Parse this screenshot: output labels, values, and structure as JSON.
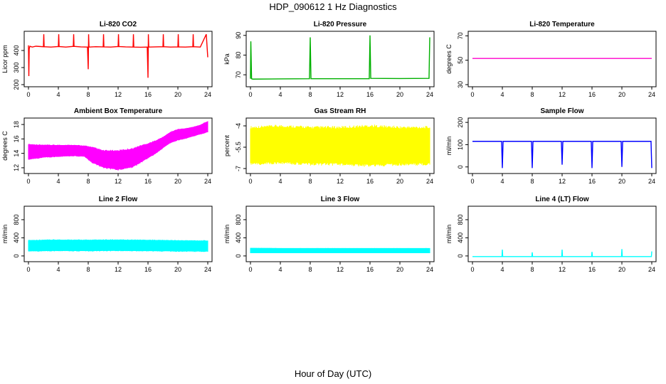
{
  "figure": {
    "title": "HDP_090612  1 Hz Diagnostics",
    "xlabel": "Hour of Day (UTC)"
  },
  "chart_data": [
    {
      "type": "line",
      "title": "Li-820 CO2",
      "ylabel": "Licor ppm",
      "color": "#ff0000",
      "xlim": [
        0,
        24
      ],
      "ylim": [
        200,
        500
      ],
      "yticks": [
        200,
        300,
        400
      ],
      "xticks": [
        0,
        4,
        8,
        12,
        16,
        20,
        24
      ],
      "series": [
        {
          "x": [
            0,
            0.05,
            0.1,
            0.2,
            0.5,
            1,
            2,
            2.05,
            2.1,
            3,
            4,
            4.05,
            4.1,
            5,
            6,
            6.05,
            6.1,
            7,
            7.9,
            8,
            8.05,
            8.1,
            9,
            10,
            10.05,
            10.1,
            11,
            12,
            12.05,
            12.1,
            13,
            14,
            14.05,
            14.1,
            15,
            15.9,
            16,
            16.05,
            16.1,
            17,
            18,
            18.05,
            18.1,
            19,
            20,
            20.05,
            20.1,
            21,
            22,
            22.05,
            22.1,
            23,
            23.8,
            24
          ],
          "y": [
            430,
            250,
            410,
            425,
            420,
            425,
            422,
            495,
            422,
            420,
            423,
            495,
            423,
            420,
            424,
            495,
            424,
            421,
            420,
            290,
            495,
            420,
            422,
            421,
            495,
            421,
            420,
            423,
            495,
            423,
            421,
            420,
            495,
            420,
            419,
            420,
            240,
            495,
            420,
            421,
            422,
            495,
            422,
            420,
            421,
            495,
            421,
            420,
            422,
            495,
            422,
            420,
            495,
            360
          ]
        }
      ]
    },
    {
      "type": "line",
      "title": "Li-820 Pressure",
      "ylabel": "kPa",
      "color": "#00b000",
      "xlim": [
        0,
        24
      ],
      "ylim": [
        65,
        91
      ],
      "yticks": [
        70,
        80,
        90
      ],
      "xticks": [
        0,
        4,
        8,
        12,
        16,
        20,
        24
      ],
      "series": [
        {
          "x": [
            0,
            0.05,
            0.15,
            0.3,
            4,
            7.9,
            8,
            8.1,
            12,
            15.9,
            16,
            16.1,
            20,
            23.9,
            24
          ],
          "y": [
            68,
            87,
            68,
            67.8,
            67.9,
            68,
            89,
            68,
            68,
            68,
            90,
            68.2,
            68.1,
            68.2,
            89
          ]
        }
      ]
    },
    {
      "type": "line",
      "title": "Li-820 Temperature",
      "ylabel": "degrees C",
      "color": "#ff00cc",
      "xlim": [
        0,
        24
      ],
      "ylim": [
        30,
        72
      ],
      "yticks": [
        30,
        50,
        70
      ],
      "xticks": [
        0,
        4,
        8,
        12,
        16,
        20,
        24
      ],
      "series": [
        {
          "x": [
            0,
            24
          ],
          "y": [
            51.5,
            51.5
          ]
        }
      ]
    },
    {
      "type": "area",
      "title": "Ambient Box Temperature",
      "ylabel": "degrees C",
      "color": "#ff00ff",
      "xlim": [
        0,
        24
      ],
      "ylim": [
        11.5,
        18.6
      ],
      "yticks": [
        12,
        14,
        16,
        18
      ],
      "xticks": [
        0,
        4,
        8,
        12,
        16,
        20,
        24
      ],
      "x": [
        0,
        2,
        4,
        6,
        7.5,
        8.5,
        10,
        12,
        14,
        15,
        16,
        17,
        18,
        19,
        20,
        21,
        22,
        23,
        24
      ],
      "upper": [
        15.2,
        15.1,
        15.1,
        15.1,
        15.0,
        14.8,
        14.3,
        14.3,
        14.6,
        15.0,
        15.3,
        15.7,
        16.2,
        16.9,
        17.3,
        17.4,
        17.6,
        17.9,
        18.4
      ],
      "lower": [
        13.2,
        13.5,
        13.6,
        13.7,
        13.6,
        12.8,
        12.1,
        11.8,
        12.2,
        12.8,
        13.4,
        14.0,
        14.8,
        15.5,
        15.9,
        16.1,
        16.4,
        16.7,
        17.0
      ]
    },
    {
      "type": "area",
      "title": "Gas Stream RH",
      "ylabel": "percent",
      "color": "#ffff00",
      "xlim": [
        0,
        24
      ],
      "ylim": [
        -7.2,
        -3.6
      ],
      "yticks": [
        -7.0,
        -5.5,
        -4.0
      ],
      "xticks": [
        0,
        4,
        8,
        12,
        16,
        20,
        24
      ],
      "x": [
        0,
        4,
        8,
        12,
        16,
        20,
        24
      ],
      "upper": [
        -4.2,
        -4.1,
        -4.2,
        -4.2,
        -4.1,
        -4.2,
        -4.2
      ],
      "lower": [
        -6.6,
        -6.5,
        -6.6,
        -6.6,
        -6.7,
        -6.6,
        -6.6
      ]
    },
    {
      "type": "line",
      "title": "Sample Flow",
      "ylabel": "ml/min",
      "color": "#0000ff",
      "xlim": [
        0,
        24
      ],
      "ylim": [
        -20,
        210
      ],
      "yticks": [
        0,
        100,
        200
      ],
      "xticks": [
        0,
        4,
        8,
        12,
        16,
        20,
        24
      ],
      "series": [
        {
          "x": [
            0,
            3.9,
            4,
            4.1,
            7.9,
            8,
            8.1,
            11.9,
            12,
            12.1,
            15.9,
            16,
            16.1,
            19.9,
            20,
            20.1,
            23.9,
            24
          ],
          "y": [
            115,
            115,
            -5,
            115,
            115,
            -5,
            115,
            115,
            10,
            115,
            115,
            -5,
            115,
            115,
            0,
            115,
            115,
            -5
          ]
        }
      ]
    },
    {
      "type": "area",
      "title": "Line 2 Flow",
      "ylabel": "ml/min",
      "color": "#00ffff",
      "xlim": [
        0,
        24
      ],
      "ylim": [
        -80,
        1050
      ],
      "yticks": [
        0,
        400,
        800
      ],
      "xticks": [
        0,
        4,
        8,
        12,
        16,
        20,
        24
      ],
      "x": [
        0,
        4,
        8,
        12,
        16,
        20,
        24
      ],
      "upper": [
        340,
        350,
        345,
        350,
        345,
        335,
        330
      ],
      "lower": [
        110,
        120,
        115,
        120,
        115,
        110,
        105
      ]
    },
    {
      "type": "area",
      "title": "Line 3 Flow",
      "ylabel": "ml/min",
      "color": "#00ffff",
      "xlim": [
        0,
        24
      ],
      "ylim": [
        -80,
        1050
      ],
      "yticks": [
        0,
        400,
        800
      ],
      "xticks": [
        0,
        4,
        8,
        12,
        16,
        20,
        24
      ],
      "x": [
        0,
        4,
        8,
        12,
        16,
        20,
        24
      ],
      "upper": [
        170,
        165,
        165,
        165,
        165,
        165,
        165
      ],
      "lower": [
        70,
        70,
        70,
        70,
        70,
        70,
        70
      ]
    },
    {
      "type": "line",
      "title": "Line 4 (LT) Flow",
      "ylabel": "ml/min",
      "color": "#00ffff",
      "xlim": [
        0,
        24
      ],
      "ylim": [
        -80,
        1050
      ],
      "yticks": [
        0,
        400,
        800
      ],
      "xticks": [
        0,
        4,
        8,
        12,
        16,
        20,
        24
      ],
      "series": [
        {
          "x": [
            0,
            3.95,
            4,
            4.05,
            7.95,
            8,
            8.05,
            11.95,
            12,
            12.05,
            15.95,
            16,
            16.05,
            19.95,
            20,
            20.05,
            23.95,
            24
          ],
          "y": [
            -15,
            -15,
            140,
            -15,
            -15,
            80,
            -15,
            -15,
            140,
            -15,
            -15,
            90,
            -15,
            -15,
            150,
            -15,
            -15,
            100
          ]
        }
      ]
    }
  ]
}
